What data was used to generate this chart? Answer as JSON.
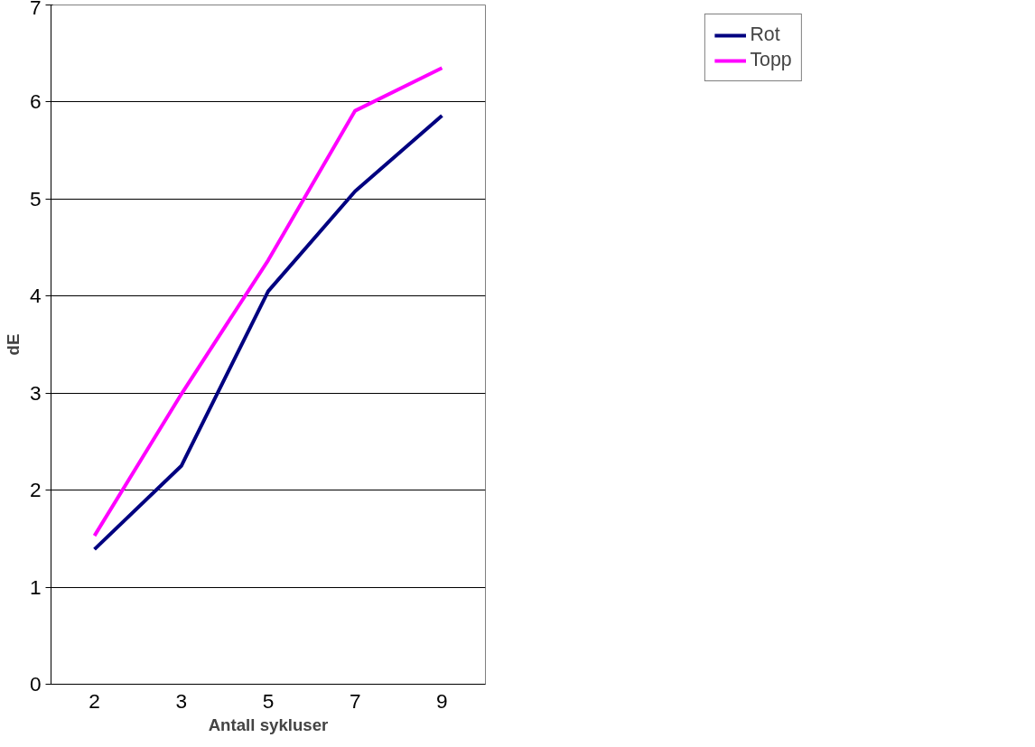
{
  "chart_data": {
    "type": "line",
    "xlabel": "Antall sykluser",
    "ylabel": "dE",
    "categories": [
      "2",
      "3",
      "5",
      "7",
      "9"
    ],
    "series": [
      {
        "name": "Rot",
        "color": "#000080",
        "values": [
          1.39,
          2.25,
          4.05,
          5.08,
          5.86
        ]
      },
      {
        "name": "Topp",
        "color": "#ff00ff",
        "values": [
          1.53,
          2.99,
          4.37,
          5.91,
          6.35
        ]
      }
    ],
    "ylim": [
      0,
      7
    ],
    "yticks": [
      0,
      1,
      2,
      3,
      4,
      5,
      6,
      7
    ],
    "grid": "y",
    "legend": "top right",
    "marker": "none",
    "line_style": "solid"
  }
}
